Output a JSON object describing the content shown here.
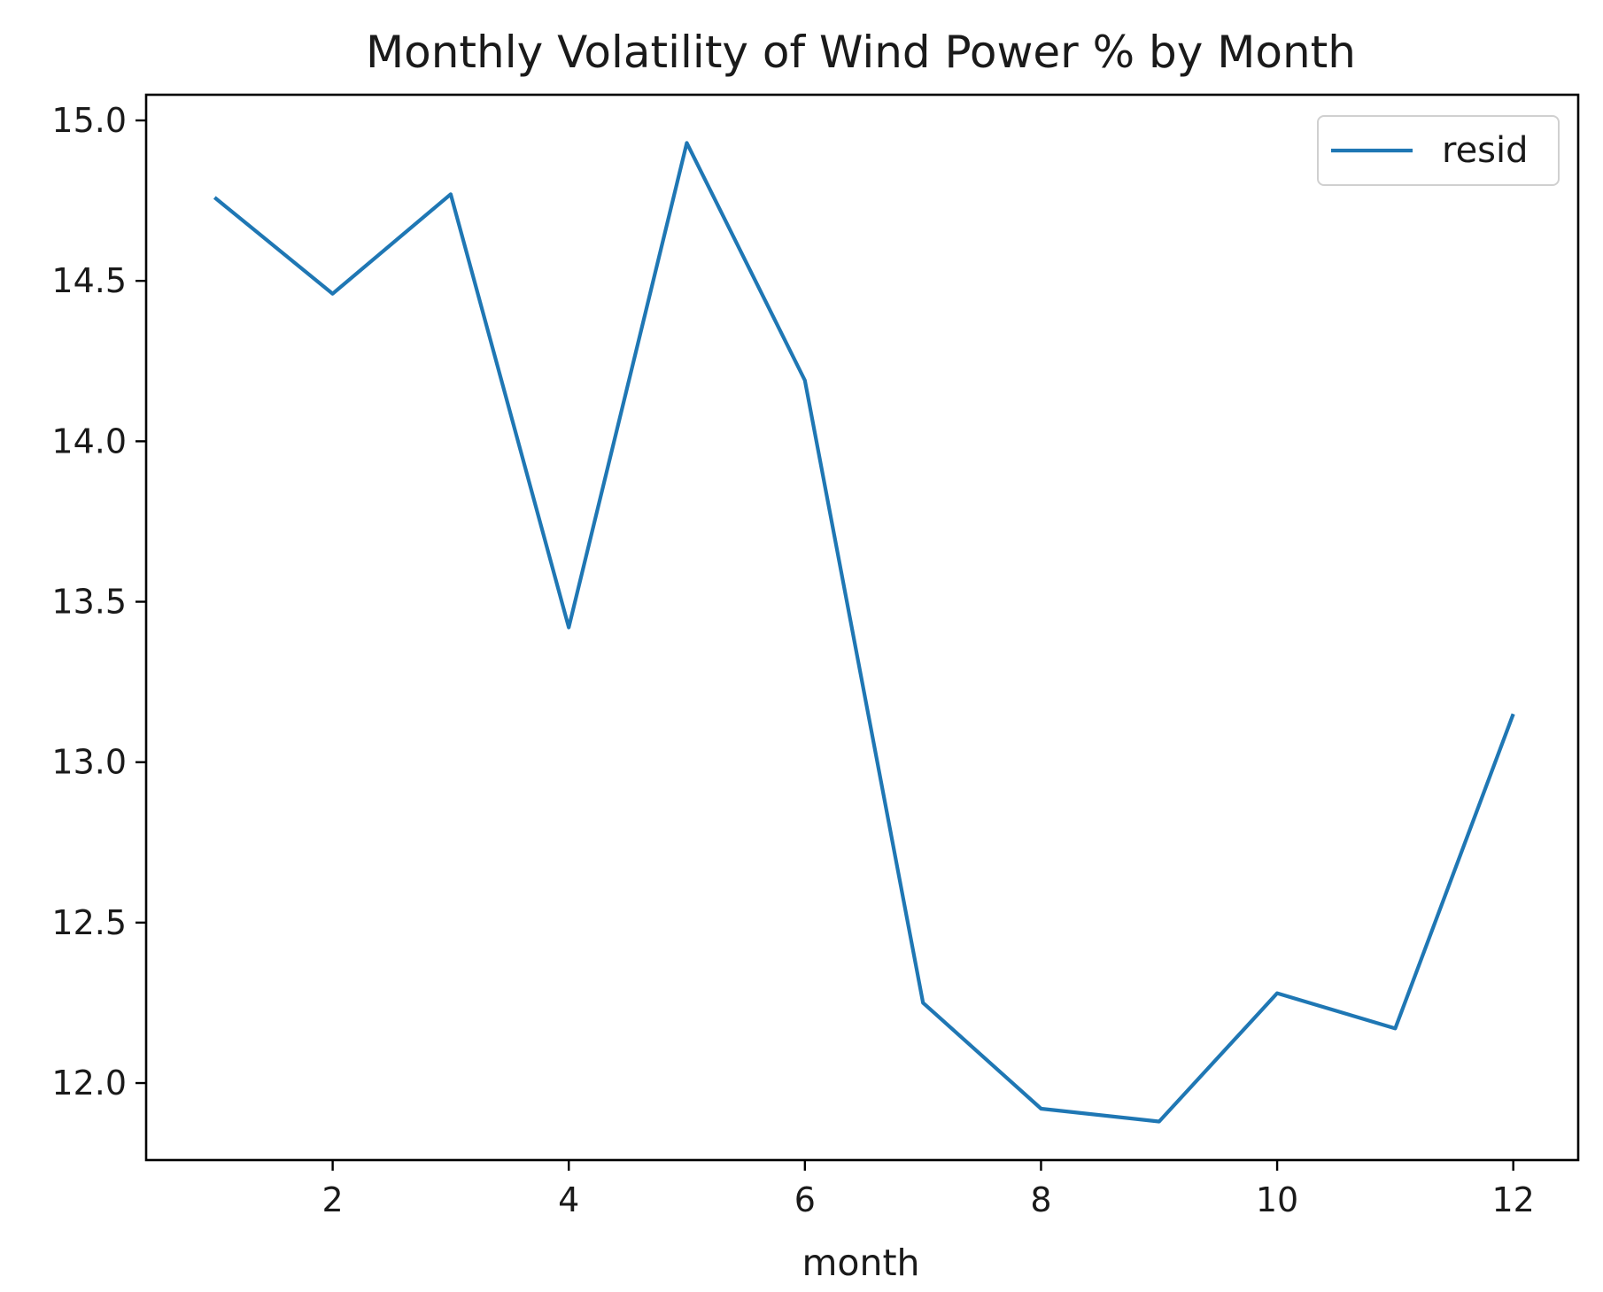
{
  "chart_data": {
    "type": "line",
    "title": "Monthly Volatility of Wind Power % by Month",
    "xlabel": "month",
    "ylabel": "",
    "x": [
      1,
      2,
      3,
      4,
      5,
      6,
      7,
      8,
      9,
      10,
      11,
      12
    ],
    "series": [
      {
        "name": "resid",
        "color": "#1f77b4",
        "values": [
          14.76,
          14.46,
          14.77,
          13.42,
          14.93,
          14.19,
          12.25,
          11.92,
          11.88,
          12.28,
          12.17,
          13.15
        ]
      }
    ],
    "xlim": [
      0.42,
      12.55
    ],
    "ylim": [
      11.76,
      15.08
    ],
    "xticks": [
      2,
      4,
      6,
      8,
      10,
      12
    ],
    "xtick_labels": [
      "2",
      "4",
      "6",
      "8",
      "10",
      "12"
    ],
    "yticks": [
      12.0,
      12.5,
      13.0,
      13.5,
      14.0,
      14.5,
      15.0
    ],
    "ytick_labels": [
      "12.0",
      "12.5",
      "13.0",
      "13.5",
      "14.0",
      "14.5",
      "15.0"
    ],
    "grid": false,
    "legend_position": "top-right"
  }
}
